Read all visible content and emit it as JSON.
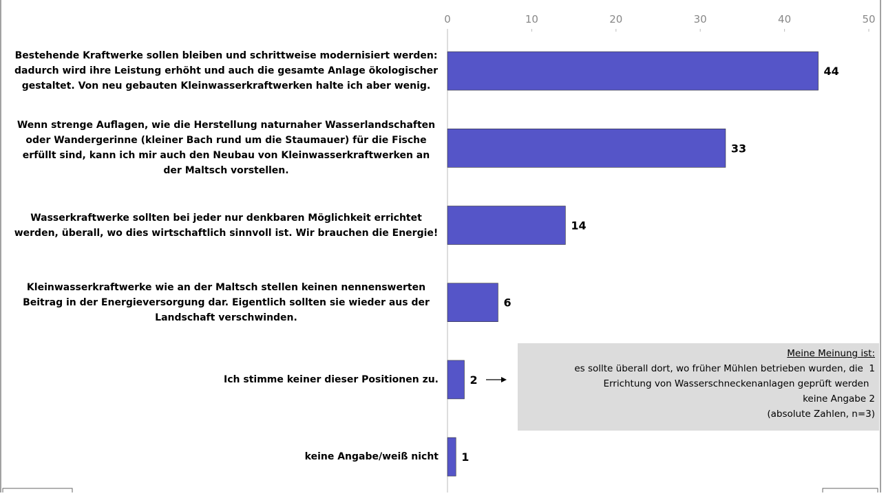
{
  "chart_data": {
    "type": "barh",
    "categories": [
      "Bestehende Kraftwerke sollen bleiben und schrittweise modernisiert werden: dadurch wird ihre Leistung erhöht und auch die gesamte Anlage ökologischer gestaltet. Von neu gebauten Kleinwasserkraftwerken halte ich aber wenig.",
      "Wenn strenge Auflagen, wie die Herstellung naturnaher Wasserlandschaften oder Wandergerinne (kleiner Bach rund um die Staumauer) für die Fische erfüllt sind, kann ich mir auch den Neubau von Kleinwasserkraftwerken an der Maltsch vorstellen.",
      "Wasserkraftwerke sollten bei jeder nur denkbaren Möglichkeit errichtet werden, überall, wo dies wirtschaftlich sinnvoll ist. Wir brauchen die Energie!",
      "Kleinwasserkraftwerke wie an der Maltsch stellen keinen nennenswerten Beitrag in der Energieversorgung dar. Eigentlich sollten sie wieder aus der Landschaft verschwinden.",
      "Ich stimme keiner dieser Positionen zu.",
      "keine Angabe/weiß nicht"
    ],
    "values": [
      44,
      33,
      14,
      6,
      2,
      1
    ],
    "color": "#5555c8",
    "xlim": [
      0,
      50
    ],
    "xticks": [
      0,
      10,
      20,
      30,
      40,
      50
    ],
    "annotation": {
      "heading": "Meine Meinung ist:",
      "lines": [
        "es sollte überall dort, wo früher Mühlen betrieben wurden, die  1",
        "Errichtung von Wasserschneckenanlagen geprüft werden  ",
        "keine Angabe 2",
        "(absolute Zahlen, n=3)"
      ]
    }
  }
}
